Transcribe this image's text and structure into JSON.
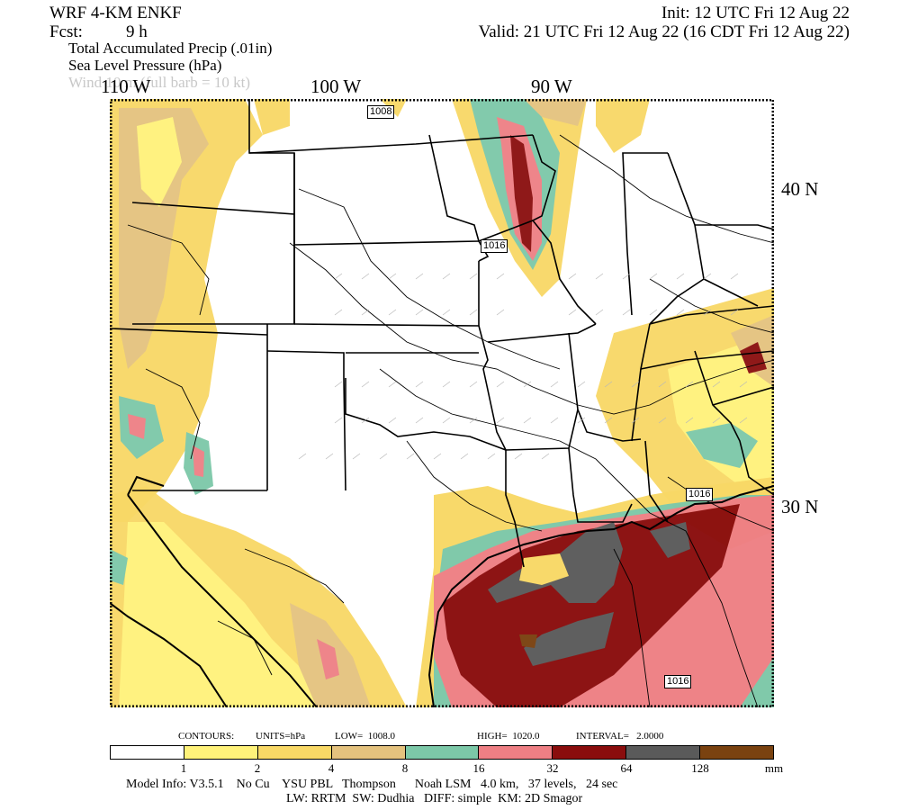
{
  "header": {
    "model_name": "WRF 4-KM ENKF",
    "fcst_label": "Fcst:",
    "fcst_value": "9 h",
    "init": "Init: 12 UTC Fri 12 Aug 22",
    "valid": "Valid: 21 UTC Fri 12 Aug 22 (16 CDT Fri 12 Aug 22)",
    "field_1": "Total Accumulated Precip (.01in)",
    "field_2": "Sea Level Pressure (hPa)",
    "field_3": "Wind 10 m (full barb = 10 kt)"
  },
  "longitude_labels": [
    "110 W",
    "100 W",
    "90 W"
  ],
  "latitude_labels": [
    "40 N",
    "30 N"
  ],
  "isobar_labels": [
    "1008",
    "1016",
    "1016",
    "1016"
  ],
  "contour_info": {
    "contours": "CONTOURS:",
    "units": "UNITS=hPa",
    "low": "LOW=  1008.0",
    "high": "HIGH=  1020.0",
    "interval": "INTERVAL=   2.0000"
  },
  "legend": {
    "colors": [
      "#ffffff",
      "#fff27a",
      "#f8d866",
      "#e4c27e",
      "#7cc8a8",
      "#ee7f84",
      "#8a0d0d",
      "#5a5a5a",
      "#7a4210"
    ],
    "ticks": [
      "1",
      "2",
      "4",
      "8",
      "16",
      "32",
      "64",
      "128"
    ],
    "unit": "mm"
  },
  "model_info": {
    "line1": "Model Info: V3.5.1    No Cu    YSU PBL   Thompson      Noah LSM   4.0 km,   37 levels,   24 sec",
    "line2": "LW: RRTM  SW: Dudhia   DIFF: simple  KM: 2D Smagor"
  },
  "colors": {
    "light_yellow": "#fff27a",
    "yellow": "#f8d866",
    "tan": "#e4c27e",
    "teal": "#7cc8a8",
    "pink": "#ee7f84",
    "dark_red": "#8a0d0d",
    "gray": "#5a5a5a",
    "brown": "#7a4210"
  }
}
